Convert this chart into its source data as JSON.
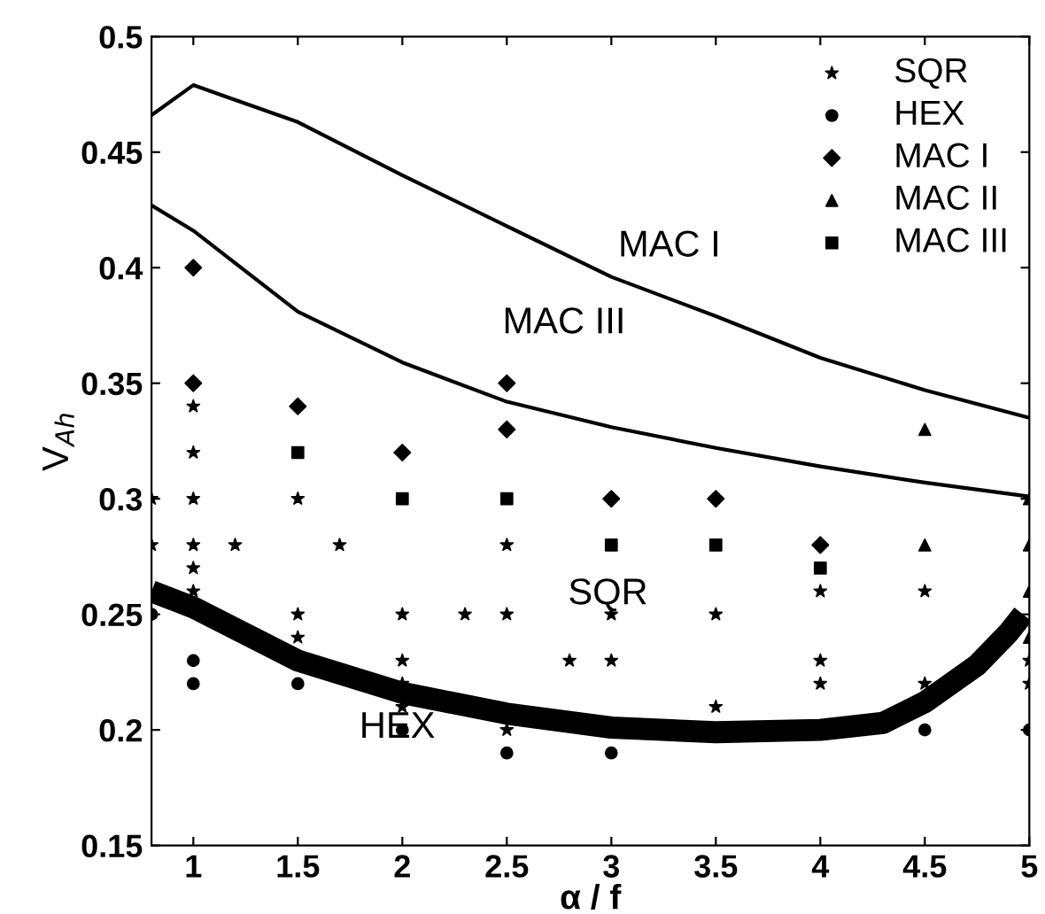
{
  "chart_data": {
    "type": "scatter",
    "xlabel": "α / f",
    "ylabel": "V$_{Ah}$",
    "xlim": [
      0.8,
      5
    ],
    "ylim": [
      0.15,
      0.5
    ],
    "xticks": [
      1,
      1.5,
      2,
      2.5,
      3,
      3.5,
      4,
      4.5,
      5
    ],
    "yticks": [
      0.15,
      0.2,
      0.25,
      0.3,
      0.35,
      0.4,
      0.45,
      0.5
    ],
    "grid": false,
    "legend": "top right",
    "series": [
      {
        "name": "SQR",
        "marker": "star",
        "color": "#000000",
        "x": [
          0.8,
          0.8,
          1,
          1,
          1,
          1,
          1,
          1,
          1.2,
          1.5,
          1.5,
          1.5,
          1.7,
          2,
          2,
          2,
          2,
          2.3,
          2.5,
          2.5,
          2.5,
          2.8,
          3,
          3,
          3.5,
          3.5,
          4,
          4,
          4,
          4.5,
          4.5,
          5,
          5
        ],
        "values": [
          0.3,
          0.28,
          0.34,
          0.32,
          0.3,
          0.28,
          0.27,
          0.26,
          0.28,
          0.3,
          0.25,
          0.24,
          0.28,
          0.25,
          0.23,
          0.22,
          0.21,
          0.25,
          0.28,
          0.25,
          0.2,
          0.23,
          0.25,
          0.23,
          0.25,
          0.21,
          0.26,
          0.23,
          0.22,
          0.26,
          0.22,
          0.23,
          0.22
        ]
      },
      {
        "name": "HEX",
        "marker": "circle",
        "color": "#000000",
        "x": [
          0.8,
          1,
          1,
          1.5,
          2,
          2.5,
          3,
          4.5,
          5
        ],
        "values": [
          0.25,
          0.23,
          0.22,
          0.22,
          0.2,
          0.19,
          0.19,
          0.2,
          0.2
        ]
      },
      {
        "name": "MAC I",
        "marker": "diamond",
        "color": "#000000",
        "x": [
          1,
          1,
          1.5,
          2,
          2.5,
          2.5,
          3,
          3.5,
          4
        ],
        "values": [
          0.4,
          0.35,
          0.34,
          0.32,
          0.35,
          0.33,
          0.3,
          0.3,
          0.28
        ]
      },
      {
        "name": "MAC II",
        "marker": "triangle",
        "color": "#000000",
        "x": [
          4.5,
          4.5,
          5,
          5,
          5,
          5
        ],
        "values": [
          0.33,
          0.28,
          0.3,
          0.28,
          0.26,
          0.24
        ]
      },
      {
        "name": "MAC III",
        "marker": "square",
        "color": "#000000",
        "x": [
          1.5,
          2,
          2.5,
          3,
          3.5,
          4
        ],
        "values": [
          0.32,
          0.3,
          0.3,
          0.28,
          0.28,
          0.27
        ]
      },
      {
        "type": "line",
        "marker": "none",
        "color": "#000000",
        "x": [
          0.8,
          1,
          1.5,
          2,
          2.5,
          3,
          3.5,
          4,
          4.5,
          5
        ],
        "values": [
          0.466,
          0.479,
          0.463,
          0.44,
          0.418,
          0.396,
          0.379,
          0.361,
          0.347,
          0.335
        ]
      },
      {
        "type": "line",
        "marker": "none",
        "color": "#000000",
        "x": [
          0.8,
          1,
          1.5,
          2,
          2.5,
          3,
          3.5,
          4,
          4.5,
          5
        ],
        "values": [
          0.427,
          0.416,
          0.381,
          0.359,
          0.342,
          0.331,
          0.322,
          0.314,
          0.307,
          0.301
        ]
      },
      {
        "type": "line",
        "marker": "none",
        "color": "#000000",
        "x": [
          0.8,
          1,
          1.5,
          2,
          2.5,
          3,
          3.5,
          4,
          4.3,
          4.5,
          4.75,
          4.9,
          4.97
        ],
        "values": [
          0.26,
          0.253,
          0.23,
          0.216,
          0.207,
          0.201,
          0.199,
          0.2,
          0.203,
          0.212,
          0.228,
          0.242,
          0.25
        ]
      }
    ],
    "annotations": [
      "MAC I",
      "MAC III",
      "SQR",
      "HEX"
    ]
  }
}
